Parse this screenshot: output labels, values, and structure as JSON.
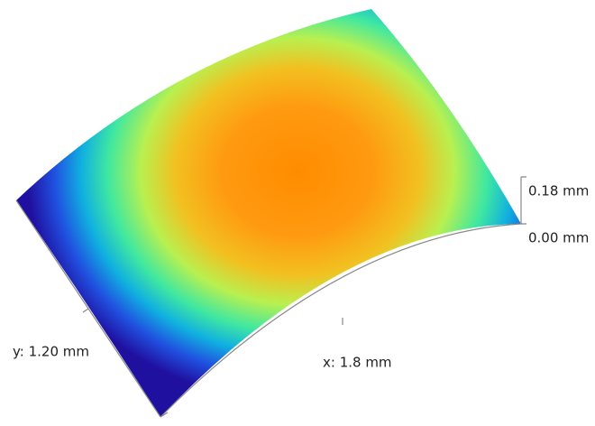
{
  "z_axis": {
    "max_label": "0.18 mm",
    "min_label": "0.00 mm"
  },
  "y_axis": {
    "label": "y: 1.20 mm"
  },
  "x_axis": {
    "label": "x: 1.8 mm"
  }
}
